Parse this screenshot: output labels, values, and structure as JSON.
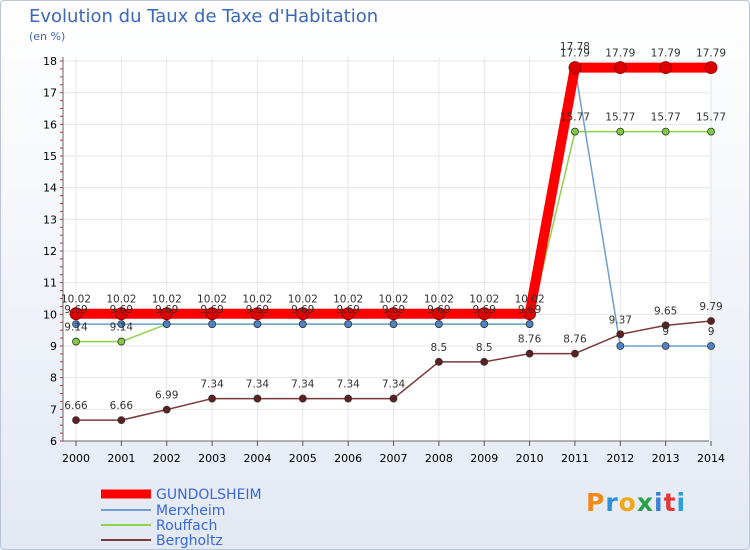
{
  "chart_data": {
    "type": "line",
    "title": "Evolution du Taux de Taxe d'Habitation",
    "ylabel": "(en %)",
    "xlabel": "",
    "ylim": [
      6,
      18
    ],
    "yticks": [
      "6",
      "7",
      "8",
      "9",
      "10",
      "11",
      "12",
      "13",
      "14",
      "15",
      "16",
      "17",
      "18"
    ],
    "categories": [
      "2000",
      "2001",
      "2002",
      "2003",
      "2004",
      "2005",
      "2006",
      "2007",
      "2008",
      "2009",
      "2010",
      "2011",
      "2012",
      "2013",
      "2014"
    ],
    "series": [
      {
        "name": "Rouffach",
        "color": "#8ed14b",
        "dot": "#80cc40",
        "values": [
          9.14,
          9.14,
          9.69,
          9.69,
          9.69,
          9.69,
          9.69,
          9.69,
          9.69,
          9.69,
          9.69,
          15.77,
          15.77,
          15.77,
          15.77
        ],
        "labels": [
          "9.14",
          "9.14",
          "",
          "",
          "",
          "",
          "",
          "",
          "",
          "",
          "",
          "15.77",
          "15.77",
          "15.77",
          "15.77"
        ]
      },
      {
        "name": "Merxheim",
        "color": "#6e9fd0",
        "dot": "#4d83c8",
        "values": [
          9.69,
          9.69,
          9.69,
          9.69,
          9.69,
          9.69,
          9.69,
          9.69,
          9.69,
          9.69,
          9.69,
          17.78,
          9,
          9,
          9
        ],
        "labels": [
          "9.69",
          "9.69",
          "9.69",
          "9.69",
          "9.69",
          "9.69",
          "9.69",
          "9.69",
          "9.69",
          "9.69",
          "9.69",
          "17.78",
          "",
          "9",
          "9"
        ]
      },
      {
        "name": "Bergholtz",
        "color": "#7b3a3a",
        "dot": "#5e1f1f",
        "values": [
          6.66,
          6.66,
          6.99,
          7.34,
          7.34,
          7.34,
          7.34,
          7.34,
          8.5,
          8.5,
          8.76,
          8.76,
          9.37,
          9.65,
          9.79
        ],
        "labels": [
          "6.66",
          "6.66",
          "6.99",
          "7.34",
          "7.34",
          "7.34",
          "7.34",
          "7.34",
          "8.5",
          "8.5",
          "8.76",
          "8.76",
          "9.37",
          "9.65",
          "9.79"
        ]
      },
      {
        "name": "GUNDOLSHEIM",
        "color": "#ff0000",
        "dot": "#dd0000",
        "values": [
          10.02,
          10.02,
          10.02,
          10.02,
          10.02,
          10.02,
          10.02,
          10.02,
          10.02,
          10.02,
          10.02,
          17.79,
          17.79,
          17.79,
          17.79
        ],
        "labels": [
          "10.02",
          "10.02",
          "10.02",
          "10.02",
          "10.02",
          "10.02",
          "10.02",
          "10.02",
          "10.02",
          "10.02",
          "10.02",
          "17.79",
          "17.79",
          "17.79",
          "17.79"
        ]
      }
    ],
    "legend": [
      "GUNDOLSHEIM",
      "Merxheim",
      "Rouffach",
      "Bergholtz"
    ],
    "legend_position": "bottom-left"
  },
  "brand": "Proxiti"
}
